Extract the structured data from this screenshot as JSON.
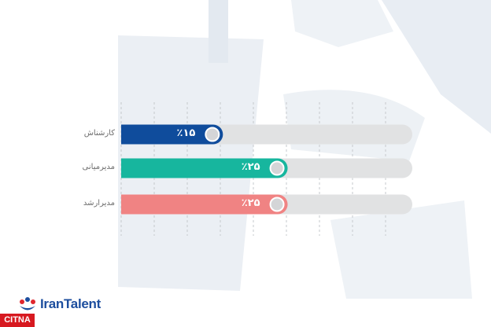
{
  "chart_data": {
    "type": "bar",
    "orientation": "horizontal",
    "categories": [
      "کارشناش",
      "مدیرمیانی",
      "مدیرارشد"
    ],
    "values": [
      15,
      25,
      25
    ],
    "value_labels": [
      "٪۱۵",
      "٪۲۵",
      "٪۲۵"
    ],
    "xlim": [
      0,
      45
    ],
    "grid": true,
    "colors": [
      "#0f4c9c",
      "#17b69e",
      "#f08383"
    ],
    "track_color": "#e1e2e3"
  },
  "brand": {
    "logo_text": "IranTalent",
    "watermark": "CITNA",
    "logo_colors": [
      "#e0262d",
      "#1d4e9e",
      "#f6b51d"
    ]
  }
}
